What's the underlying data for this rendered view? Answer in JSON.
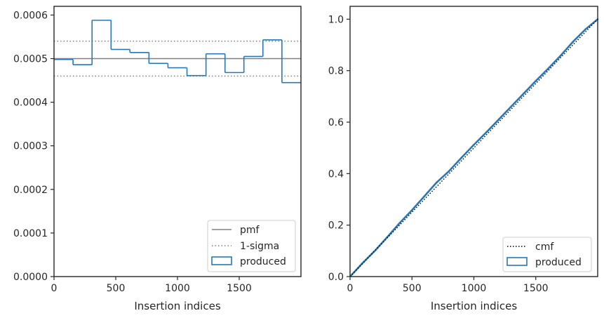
{
  "colors": {
    "produced": "#2878b5",
    "pmf": "#808080",
    "sigma": "#808080",
    "cmf": "#000000",
    "axes": "#262626"
  },
  "chart_data": [
    {
      "type": "histogram",
      "xlabel": "Insertion indices",
      "ylabel": "",
      "xlim": [
        0,
        2000
      ],
      "ylim": [
        0,
        0.00062
      ],
      "xticks": [
        0,
        500,
        1000,
        1500
      ],
      "xtick_labels": [
        "0",
        "500",
        "1000",
        "1500"
      ],
      "yticks": [
        0,
        0.0001,
        0.0002,
        0.0003,
        0.0004,
        0.0005,
        0.0006
      ],
      "ytick_labels": [
        "0.0000",
        "0.0001",
        "0.0002",
        "0.0003",
        "0.0004",
        "0.0005",
        "0.0006"
      ],
      "pmf": 0.0005,
      "sigma_band": [
        0.00046,
        0.00054
      ],
      "bin_edges": [
        0,
        154,
        308,
        462,
        615,
        769,
        923,
        1077,
        1231,
        1385,
        1538,
        1692,
        1846,
        2000
      ],
      "values": [
        0.000498,
        0.000486,
        0.000588,
        0.000521,
        0.000514,
        0.000489,
        0.000479,
        0.000461,
        0.000511,
        0.000468,
        0.000505,
        0.000543,
        0.000445
      ],
      "legend": {
        "placement": "lower right",
        "entries": [
          "pmf",
          "1-sigma",
          "produced"
        ]
      }
    },
    {
      "type": "line",
      "xlabel": "Insertion indices",
      "ylabel": "",
      "xlim": [
        0,
        2000
      ],
      "ylim": [
        0,
        1.05
      ],
      "xticks": [
        0,
        500,
        1000,
        1500
      ],
      "xtick_labels": [
        "0",
        "500",
        "1000",
        "1500"
      ],
      "yticks": [
        0,
        0.2,
        0.4,
        0.6,
        0.8,
        1.0
      ],
      "ytick_labels": [
        "0.0",
        "0.2",
        "0.4",
        "0.6",
        "0.8",
        "1.0"
      ],
      "series": [
        {
          "name": "cmf",
          "x": [
            0,
            2000
          ],
          "values": [
            0,
            1.0
          ]
        },
        {
          "name": "produced",
          "x": [
            0,
            100,
            200,
            300,
            400,
            500,
            600,
            700,
            800,
            900,
            1000,
            1100,
            1200,
            1300,
            1400,
            1500,
            1600,
            1700,
            1800,
            1900,
            2000
          ],
          "values": [
            0,
            0.052,
            0.1,
            0.153,
            0.208,
            0.258,
            0.312,
            0.366,
            0.41,
            0.462,
            0.512,
            0.56,
            0.61,
            0.66,
            0.71,
            0.76,
            0.808,
            0.858,
            0.912,
            0.96,
            1.0
          ]
        }
      ],
      "legend": {
        "placement": "lower right",
        "entries": [
          "cmf",
          "produced"
        ]
      }
    }
  ]
}
